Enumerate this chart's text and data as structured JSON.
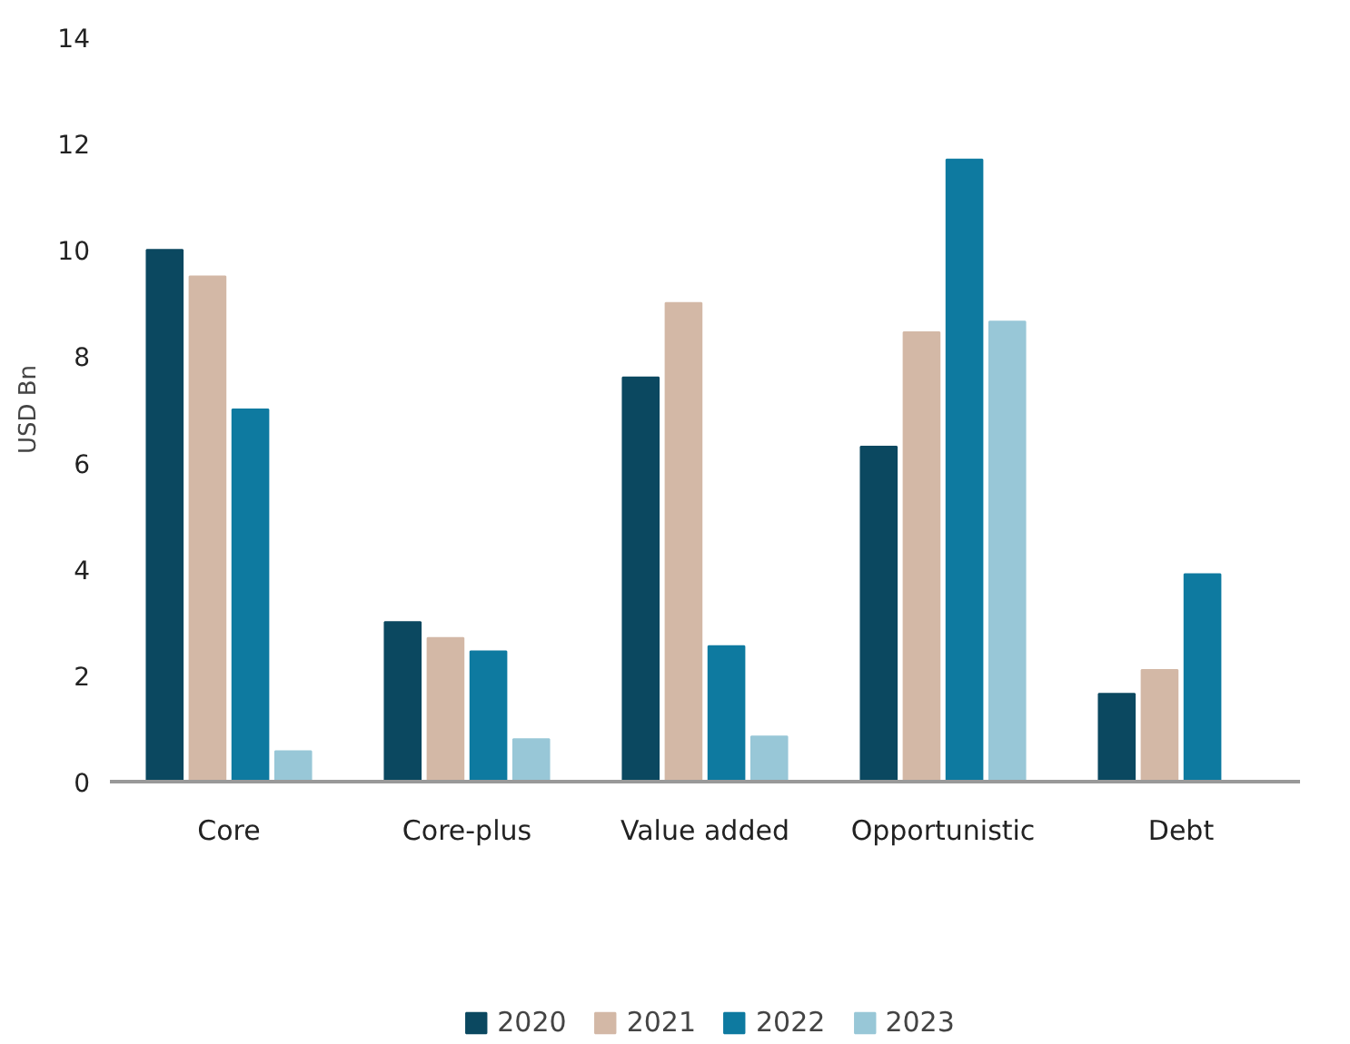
{
  "chart_data": {
    "type": "bar",
    "ylabel": "USD Bn",
    "categories": [
      "Core",
      "Core-plus",
      "Value added",
      "Opportunistic",
      "Debt"
    ],
    "series": [
      {
        "name": "2020",
        "color": "#0b4860",
        "values": [
          10.0,
          3.0,
          7.6,
          6.3,
          1.65
        ]
      },
      {
        "name": "2021",
        "color": "#d3b8a6",
        "values": [
          9.5,
          2.7,
          9.0,
          8.45,
          2.1
        ]
      },
      {
        "name": "2022",
        "color": "#0e7aa0",
        "values": [
          7.0,
          2.45,
          2.55,
          11.7,
          3.9
        ]
      },
      {
        "name": "2023",
        "color": "#98c7d7",
        "values": [
          0.57,
          0.8,
          0.85,
          8.65,
          null
        ]
      }
    ],
    "ylim": [
      0,
      14
    ],
    "yticks": [
      0,
      2,
      4,
      6,
      8,
      10,
      12,
      14
    ],
    "grid": false,
    "legend": "bottom"
  }
}
